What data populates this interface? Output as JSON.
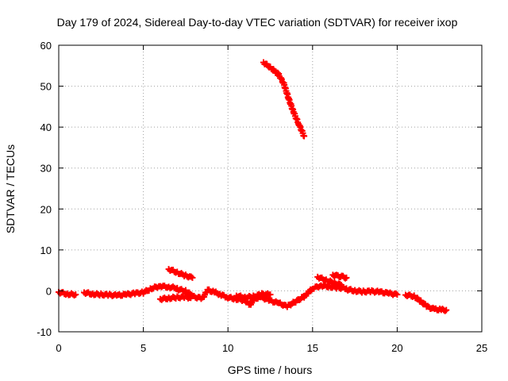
{
  "chart_data": {
    "type": "scatter",
    "title": "Day 179 of 2024, Sidereal Day-to-day VTEC variation (SDTVAR) for receiver ixop",
    "xlabel": "GPS time / hours",
    "ylabel": "SDTVAR / TECUs",
    "xlim": [
      0,
      25
    ],
    "ylim": [
      -10,
      60
    ],
    "xticks": [
      "0",
      "5",
      "10",
      "15",
      "20",
      "25"
    ],
    "yticks": [
      "-10",
      "0",
      "10",
      "20",
      "30",
      "40",
      "50",
      "60"
    ],
    "grid": true,
    "marker": "plus",
    "series": [
      {
        "name": "SDTVAR",
        "color": "#ff0000",
        "segments": [
          {
            "x": [
              0.0,
              0.5,
              1.0
            ],
            "y": [
              -0.3,
              -0.8,
              -0.9
            ]
          },
          {
            "x": [
              1.5,
              2.0,
              2.5,
              3.0,
              3.5,
              4.0,
              4.5,
              5.0,
              5.5,
              6.0,
              6.5,
              7.0
            ],
            "y": [
              -0.4,
              -0.8,
              -0.9,
              -1.0,
              -1.1,
              -0.9,
              -0.6,
              -0.4,
              0.6,
              1.2,
              0.9,
              0.7
            ]
          },
          {
            "x": [
              6.0,
              6.5,
              7.0,
              7.5,
              7.8
            ],
            "y": [
              -2.0,
              -1.8,
              -1.6,
              -1.5,
              -1.7
            ]
          },
          {
            "x": [
              6.5,
              7.0,
              7.5,
              7.9
            ],
            "y": [
              5.3,
              4.5,
              3.7,
              3.2
            ]
          },
          {
            "x": [
              7.0,
              7.5,
              8.0,
              8.5,
              8.8,
              9.2,
              9.6,
              10.0,
              10.5,
              11.0,
              11.3,
              11.6,
              12.0,
              12.5,
              13.0,
              13.5,
              14.0,
              14.5,
              15.0,
              15.5,
              16.0,
              16.5,
              17.0
            ],
            "y": [
              0.4,
              0.0,
              -1.5,
              -1.8,
              0.2,
              -0.3,
              -1.0,
              -1.6,
              -2.0,
              -2.3,
              -3.4,
              -1.8,
              -1.6,
              -2.4,
              -3.0,
              -3.8,
              -2.6,
              -1.4,
              0.6,
              1.3,
              1.0,
              0.8,
              0.6
            ]
          },
          {
            "x": [
              10.5,
              11.0,
              11.5,
              12.0,
              12.5
            ],
            "y": [
              -1.2,
              -1.6,
              -1.4,
              -0.8,
              -0.9
            ]
          },
          {
            "x": [
              12.1,
              12.5,
              13.0,
              13.3,
              13.6,
              13.9,
              14.2,
              14.5
            ],
            "y": [
              55.8,
              54.6,
              52.8,
              50.6,
              46.8,
              43.4,
              40.6,
              37.8
            ]
          },
          {
            "x": [
              15.3,
              15.8,
              16.3,
              16.7
            ],
            "y": [
              3.4,
              2.6,
              1.9,
              1.4
            ]
          },
          {
            "x": [
              16.2,
              16.5,
              16.8,
              17.0
            ],
            "y": [
              3.9,
              3.6,
              3.4,
              3.2
            ]
          },
          {
            "x": [
              17.0,
              17.5,
              18.0,
              18.5,
              19.0,
              19.5,
              20.0
            ],
            "y": [
              0.4,
              0.0,
              -0.2,
              -0.1,
              -0.3,
              -0.6,
              -0.9
            ]
          },
          {
            "x": [
              20.5,
              21.0,
              21.4,
              21.8,
              22.2,
              22.6,
              22.9
            ],
            "y": [
              -1.0,
              -1.3,
              -2.6,
              -3.9,
              -4.5,
              -4.6,
              -4.7
            ]
          }
        ]
      }
    ]
  }
}
